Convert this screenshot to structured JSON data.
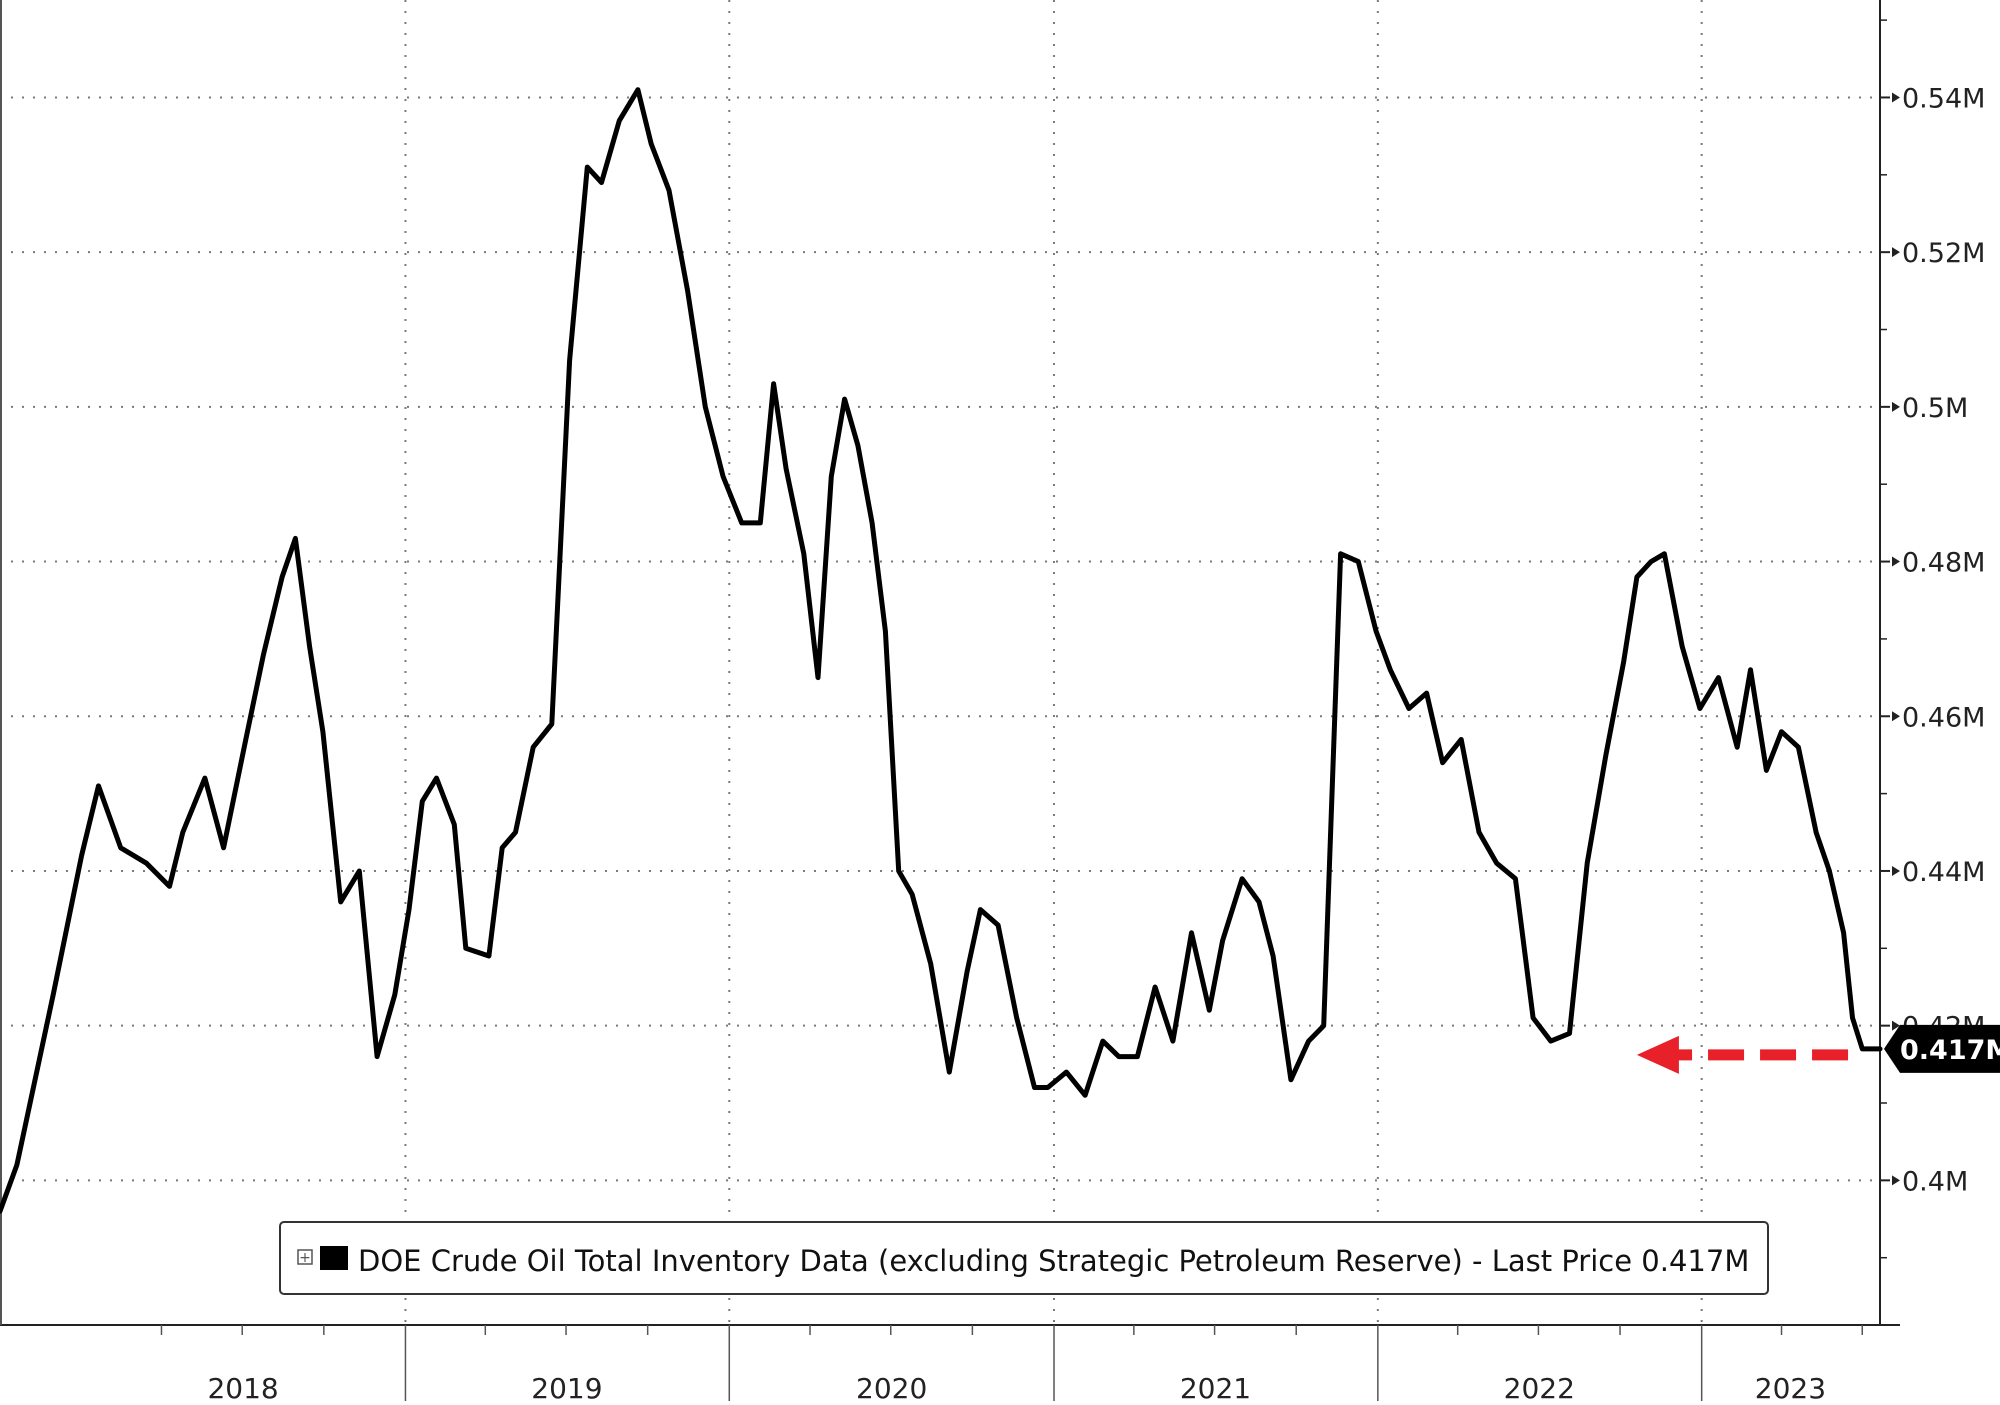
{
  "chart_data": {
    "type": "line",
    "title": "",
    "xlabel": "",
    "ylabel": "",
    "x_tick_labels": [
      "2018",
      "2019",
      "2020",
      "2021",
      "2022",
      "2023"
    ],
    "y_tick_labels": [
      "0.4M",
      "0.42M",
      "0.44M",
      "0.46M",
      "0.48M",
      "0.5M",
      "0.52M",
      "0.54M"
    ],
    "y_ticks": [
      0.4,
      0.42,
      0.44,
      0.46,
      0.48,
      0.5,
      0.52,
      0.54
    ],
    "ylim": [
      0.3813,
      0.5526
    ],
    "y_unit": "million barrels (M)",
    "xlim": [
      "2017-10-01",
      "2023-07-21"
    ],
    "grid": true,
    "legend_position": "bottom-center",
    "legend_label": "DOE Crude Oil Total Inventory Data (excluding Strategic Petroleum Reserve) - Last Price 0.417M",
    "last_value": 0.417,
    "last_value_label": "0.417M",
    "annotation": {
      "type": "dashed-arrow",
      "color": "#e8202a",
      "from": {
        "x": "2023-06-15",
        "y": 0.417
      },
      "to": {
        "x": "2022-10-20",
        "y": 0.417
      }
    },
    "series": [
      {
        "name": "DOE Crude Oil Total Inventory Data (excluding Strategic Petroleum Reserve)",
        "color": "#000000",
        "x": [
          "2017-10-01",
          "2017-10-20",
          "2017-11-30",
          "2018-01-01",
          "2018-01-20",
          "2018-02-14",
          "2018-03-15",
          "2018-04-10",
          "2018-04-25",
          "2018-05-20",
          "2018-06-10",
          "2018-07-05",
          "2018-07-25",
          "2018-08-15",
          "2018-08-30",
          "2018-09-15",
          "2018-09-30",
          "2018-10-20",
          "2018-11-10",
          "2018-11-30",
          "2018-12-20",
          "2019-01-05",
          "2019-01-20",
          "2019-02-05",
          "2019-02-25",
          "2019-03-10",
          "2019-04-05",
          "2019-04-20",
          "2019-05-05",
          "2019-05-25",
          "2019-06-15",
          "2019-07-05",
          "2019-07-25",
          "2019-08-10",
          "2019-08-30",
          "2019-09-20",
          "2019-10-05",
          "2019-10-25",
          "2019-11-15",
          "2019-12-05",
          "2019-12-25",
          "2020-01-15",
          "2020-02-05",
          "2020-02-20",
          "2020-03-05",
          "2020-03-25",
          "2020-04-10",
          "2020-04-25",
          "2020-05-10",
          "2020-05-25",
          "2020-06-10",
          "2020-06-25",
          "2020-07-10",
          "2020-07-25",
          "2020-08-15",
          "2020-09-05",
          "2020-09-25",
          "2020-10-10",
          "2020-10-30",
          "2020-11-20",
          "2020-12-10",
          "2020-12-25",
          "2021-01-15",
          "2021-02-05",
          "2021-02-25",
          "2021-03-15",
          "2021-04-05",
          "2021-04-25",
          "2021-05-15",
          "2021-06-05",
          "2021-06-25",
          "2021-07-10",
          "2021-08-01",
          "2021-08-20",
          "2021-09-05",
          "2021-09-25",
          "2021-10-15",
          "2021-11-01",
          "2021-11-20",
          "2021-12-10",
          "2021-12-30",
          "2022-01-15",
          "2022-02-05",
          "2022-02-25",
          "2022-03-15",
          "2022-04-05",
          "2022-04-25",
          "2022-05-15",
          "2022-06-05",
          "2022-06-25",
          "2022-07-15",
          "2022-08-05",
          "2022-08-25",
          "2022-09-15",
          "2022-10-05",
          "2022-10-20",
          "2022-11-05",
          "2022-11-20",
          "2022-12-10",
          "2022-12-30",
          "2023-01-20",
          "2023-02-10",
          "2023-02-25",
          "2023-03-15",
          "2023-04-01",
          "2023-04-20",
          "2023-05-10",
          "2023-05-25",
          "2023-06-10",
          "2023-06-20",
          "2023-07-01",
          "2023-07-15",
          "2023-07-21"
        ],
        "values": [
          0.396,
          0.402,
          0.424,
          0.442,
          0.451,
          0.443,
          0.441,
          0.438,
          0.445,
          0.452,
          0.443,
          0.457,
          0.468,
          0.478,
          0.483,
          0.469,
          0.458,
          0.436,
          0.44,
          0.416,
          0.424,
          0.435,
          0.449,
          0.452,
          0.446,
          0.43,
          0.429,
          0.443,
          0.445,
          0.456,
          0.459,
          0.506,
          0.531,
          0.529,
          0.537,
          0.541,
          0.534,
          0.528,
          0.515,
          0.5,
          0.491,
          0.485,
          0.485,
          0.503,
          0.492,
          0.481,
          0.465,
          0.491,
          0.501,
          0.495,
          0.485,
          0.471,
          0.44,
          0.437,
          0.428,
          0.414,
          0.427,
          0.435,
          0.433,
          0.421,
          0.412,
          0.412,
          0.414,
          0.411,
          0.418,
          0.416,
          0.416,
          0.425,
          0.418,
          0.432,
          0.422,
          0.431,
          0.439,
          0.436,
          0.429,
          0.413,
          0.418,
          0.42,
          0.481,
          0.48,
          0.471,
          0.466,
          0.461,
          0.463,
          0.454,
          0.457,
          0.445,
          0.441,
          0.439,
          0.421,
          0.418,
          0.419,
          0.441,
          0.455,
          0.467,
          0.478,
          0.48,
          0.481,
          0.469,
          0.461,
          0.465,
          0.456,
          0.466,
          0.453,
          0.458,
          0.456,
          0.445,
          0.44,
          0.432,
          0.421,
          0.417,
          0.417,
          0.417
        ]
      }
    ]
  }
}
